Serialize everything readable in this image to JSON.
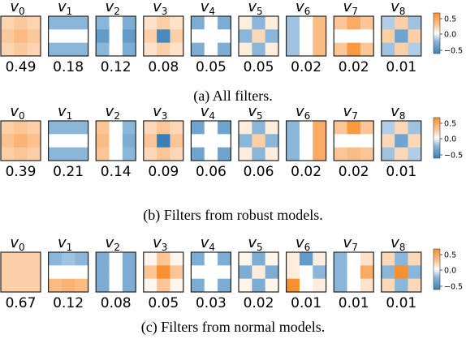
{
  "palette": {
    "neg_strong": "#3a7fb7",
    "neg_mid": "#8ab6d9",
    "neg_light": "#c9def0",
    "neutral": "#ffffff",
    "pos_light": "#fde3cd",
    "pos_mid": "#fcc595",
    "pos_strong": "#f89030",
    "frame": "#222222"
  },
  "colorbar": {
    "ticks": [
      "0.5",
      "0.0",
      "−0.5"
    ],
    "range": [
      -0.6,
      0.6
    ]
  },
  "rows": [
    {
      "caption": "(a) All filters.",
      "filters": [
        {
          "label_base": "v",
          "label_sub": "0",
          "value": "0.49",
          "cells": [
            0.22,
            0.28,
            0.22,
            0.28,
            0.36,
            0.28,
            0.22,
            0.28,
            0.22
          ]
        },
        {
          "label_base": "v",
          "label_sub": "1",
          "value": "0.18",
          "cells": [
            -0.3,
            -0.3,
            -0.3,
            0,
            0,
            0,
            -0.3,
            -0.3,
            -0.3
          ]
        },
        {
          "label_base": "v",
          "label_sub": "2",
          "value": "0.12",
          "cells": [
            -0.3,
            0,
            -0.35,
            -0.45,
            0,
            -0.45,
            -0.3,
            0,
            -0.35
          ]
        },
        {
          "label_base": "v",
          "label_sub": "3",
          "value": "0.08",
          "cells": [
            0.15,
            0.25,
            0.15,
            0.25,
            -0.55,
            0.25,
            0.15,
            0.25,
            0.15
          ]
        },
        {
          "label_base": "v",
          "label_sub": "4",
          "value": "0.05",
          "cells": [
            -0.35,
            0,
            -0.35,
            0,
            0,
            0,
            -0.35,
            0,
            -0.35
          ]
        },
        {
          "label_base": "v",
          "label_sub": "5",
          "value": "0.05",
          "cells": [
            0.1,
            -0.3,
            0.1,
            -0.3,
            0.2,
            -0.3,
            0.1,
            -0.3,
            0.1
          ]
        },
        {
          "label_base": "v",
          "label_sub": "6",
          "value": "0.02",
          "cells": [
            -0.25,
            0,
            0.35,
            -0.25,
            0,
            0.35,
            -0.25,
            0,
            0.35
          ]
        },
        {
          "label_base": "v",
          "label_sub": "7",
          "value": "0.02",
          "cells": [
            0.3,
            0.45,
            0.3,
            0,
            0,
            0,
            0.3,
            0.55,
            0.3
          ]
        },
        {
          "label_base": "v",
          "label_sub": "8",
          "value": "0.01",
          "cells": [
            -0.2,
            0.25,
            -0.25,
            0.25,
            -0.4,
            0.25,
            -0.25,
            0.25,
            -0.2
          ]
        }
      ]
    },
    {
      "caption": "(b) Filters from robust models.",
      "filters": [
        {
          "label_base": "v",
          "label_sub": "0",
          "value": "0.39",
          "cells": [
            0.25,
            0.3,
            0.25,
            0.32,
            0.4,
            0.32,
            0.25,
            0.3,
            0.25
          ]
        },
        {
          "label_base": "v",
          "label_sub": "1",
          "value": "0.21",
          "cells": [
            -0.3,
            -0.3,
            -0.3,
            0,
            0,
            0,
            -0.3,
            -0.3,
            -0.3
          ]
        },
        {
          "label_base": "v",
          "label_sub": "2",
          "value": "0.14",
          "cells": [
            0.3,
            0,
            -0.3,
            0.35,
            0,
            -0.35,
            0.3,
            0,
            -0.3
          ]
        },
        {
          "label_base": "v",
          "label_sub": "3",
          "value": "0.09",
          "cells": [
            0.2,
            0.3,
            0.2,
            0.3,
            -0.6,
            0.3,
            0.2,
            0.3,
            0.2
          ]
        },
        {
          "label_base": "v",
          "label_sub": "4",
          "value": "0.06",
          "cells": [
            -0.4,
            0,
            -0.4,
            0,
            0,
            0,
            -0.4,
            0,
            -0.4
          ]
        },
        {
          "label_base": "v",
          "label_sub": "5",
          "value": "0.06",
          "cells": [
            0.1,
            -0.3,
            0.1,
            -0.3,
            0.25,
            -0.3,
            0.1,
            -0.3,
            0.1
          ]
        },
        {
          "label_base": "v",
          "label_sub": "6",
          "value": "0.02",
          "cells": [
            -0.3,
            0,
            0.45,
            -0.3,
            0,
            0.45,
            -0.3,
            0,
            0.45
          ]
        },
        {
          "label_base": "v",
          "label_sub": "7",
          "value": "0.02",
          "cells": [
            0.3,
            0.55,
            0.3,
            0,
            0,
            0,
            0.3,
            0.35,
            0.3
          ]
        },
        {
          "label_base": "v",
          "label_sub": "8",
          "value": "0.01",
          "cells": [
            -0.2,
            0.2,
            -0.25,
            0.2,
            -0.4,
            0.2,
            -0.25,
            0.2,
            -0.2
          ]
        }
      ]
    },
    {
      "caption": "(c) Filters from normal models.",
      "filters": [
        {
          "label_base": "v",
          "label_sub": "0",
          "value": "0.67",
          "cells": [
            0.25,
            0.25,
            0.25,
            0.25,
            0.25,
            0.25,
            0.25,
            0.25,
            0.25
          ]
        },
        {
          "label_base": "v",
          "label_sub": "1",
          "value": "0.12",
          "cells": [
            -0.3,
            -0.25,
            -0.3,
            0,
            0,
            0,
            0.35,
            0.4,
            0.35
          ]
        },
        {
          "label_base": "v",
          "label_sub": "2",
          "value": "0.08",
          "cells": [
            -0.35,
            0,
            -0.35,
            -0.35,
            0,
            -0.35,
            -0.35,
            0,
            -0.35
          ]
        },
        {
          "label_base": "v",
          "label_sub": "3",
          "value": "0.05",
          "cells": [
            0.05,
            0.3,
            0.05,
            0.3,
            0.6,
            0.3,
            0.05,
            0.3,
            0.05
          ]
        },
        {
          "label_base": "v",
          "label_sub": "4",
          "value": "0.03",
          "cells": [
            -0.35,
            0,
            -0.35,
            0,
            0,
            0,
            -0.35,
            0,
            -0.35
          ]
        },
        {
          "label_base": "v",
          "label_sub": "5",
          "value": "0.02",
          "cells": [
            0.05,
            -0.35,
            0.05,
            -0.35,
            0.1,
            -0.35,
            0.05,
            -0.35,
            0.05
          ]
        },
        {
          "label_base": "v",
          "label_sub": "6",
          "value": "0.01",
          "cells": [
            0.1,
            -0.45,
            0.1,
            0.1,
            0,
            -0.3,
            0.65,
            0,
            0.1
          ]
        },
        {
          "label_base": "v",
          "label_sub": "7",
          "value": "0.01",
          "cells": [
            -0.3,
            0,
            0.15,
            -0.3,
            0,
            0.45,
            -0.3,
            0,
            0.15
          ]
        },
        {
          "label_base": "v",
          "label_sub": "8",
          "value": "0.01",
          "cells": [
            0.2,
            -0.3,
            0.2,
            -0.3,
            0.6,
            -0.3,
            0.2,
            -0.3,
            0.2
          ]
        }
      ]
    }
  ]
}
